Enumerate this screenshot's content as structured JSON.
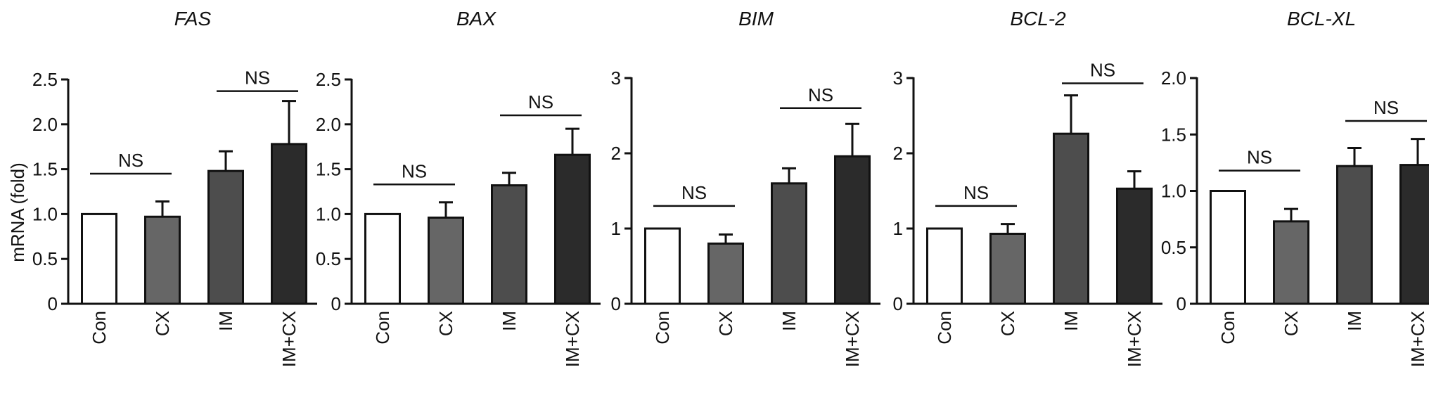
{
  "figure": {
    "ylabel": "mRNA (fold)"
  },
  "chart_data": [
    {
      "type": "bar",
      "title": "FAS",
      "ylabel": "mRNA (fold)",
      "categories": [
        "Con",
        "CX",
        "IM",
        "IM+CX"
      ],
      "values": [
        1.0,
        0.97,
        1.48,
        1.78
      ],
      "errors": [
        0.0,
        0.17,
        0.22,
        0.48
      ],
      "ylim": [
        0,
        2.5
      ],
      "yticks": [
        0,
        0.5,
        1.0,
        1.5,
        2.0,
        2.5
      ],
      "yticklabels": [
        "0",
        "0.5",
        "1.0",
        "1.5",
        "2.0",
        "2.5"
      ],
      "annotations": [
        {
          "text": "NS",
          "from": 0,
          "to": 1,
          "y": 1.45
        },
        {
          "text": "NS",
          "from": 2,
          "to": 3,
          "y": 2.37
        }
      ]
    },
    {
      "type": "bar",
      "title": "BAX",
      "ylabel": "",
      "categories": [
        "Con",
        "CX",
        "IM",
        "IM+CX"
      ],
      "values": [
        1.0,
        0.96,
        1.32,
        1.66
      ],
      "errors": [
        0.0,
        0.17,
        0.14,
        0.29
      ],
      "ylim": [
        0,
        2.5
      ],
      "yticks": [
        0,
        0.5,
        1.0,
        1.5,
        2.0,
        2.5
      ],
      "yticklabels": [
        "0",
        "0.5",
        "1.0",
        "1.5",
        "2.0",
        "2.5"
      ],
      "annotations": [
        {
          "text": "NS",
          "from": 0,
          "to": 1,
          "y": 1.33
        },
        {
          "text": "NS",
          "from": 2,
          "to": 3,
          "y": 2.1
        }
      ]
    },
    {
      "type": "bar",
      "title": "BIM",
      "ylabel": "",
      "categories": [
        "Con",
        "CX",
        "IM",
        "IM+CX"
      ],
      "values": [
        1.0,
        0.8,
        1.6,
        1.96
      ],
      "errors": [
        0.0,
        0.12,
        0.2,
        0.43
      ],
      "ylim": [
        0,
        3
      ],
      "yticks": [
        0,
        1,
        2,
        3
      ],
      "yticklabels": [
        "0",
        "1",
        "2",
        "3"
      ],
      "annotations": [
        {
          "text": "NS",
          "from": 0,
          "to": 1,
          "y": 1.3
        },
        {
          "text": "NS",
          "from": 2,
          "to": 3,
          "y": 2.6
        }
      ]
    },
    {
      "type": "bar",
      "title": "BCL-2",
      "ylabel": "",
      "categories": [
        "Con",
        "CX",
        "IM",
        "IM+CX"
      ],
      "values": [
        1.0,
        0.93,
        2.26,
        1.53
      ],
      "errors": [
        0.0,
        0.13,
        0.51,
        0.23
      ],
      "ylim": [
        0,
        3
      ],
      "yticks": [
        0,
        1,
        2,
        3
      ],
      "yticklabels": [
        "0",
        "1",
        "2",
        "3"
      ],
      "annotations": [
        {
          "text": "NS",
          "from": 0,
          "to": 1,
          "y": 1.3
        },
        {
          "text": "NS",
          "from": 2,
          "to": 3,
          "y": 2.93
        }
      ]
    },
    {
      "type": "bar",
      "title": "BCL-XL",
      "ylabel": "",
      "categories": [
        "Con",
        "CX",
        "IM",
        "IM+CX"
      ],
      "values": [
        1.0,
        0.73,
        1.22,
        1.23
      ],
      "errors": [
        0.0,
        0.11,
        0.16,
        0.23
      ],
      "ylim": [
        0,
        2.0
      ],
      "yticks": [
        0,
        0.5,
        1.0,
        1.5,
        2.0
      ],
      "yticklabels": [
        "0",
        "0.5",
        "1.0",
        "1.5",
        "2.0"
      ],
      "annotations": [
        {
          "text": "NS",
          "from": 0,
          "to": 1,
          "y": 1.18
        },
        {
          "text": "NS",
          "from": 2,
          "to": 3,
          "y": 1.62
        }
      ]
    }
  ],
  "bar_colors": [
    "#ffffff",
    "#666666",
    "#4d4d4d",
    "#2b2b2b"
  ],
  "grid": false,
  "legend": "none"
}
